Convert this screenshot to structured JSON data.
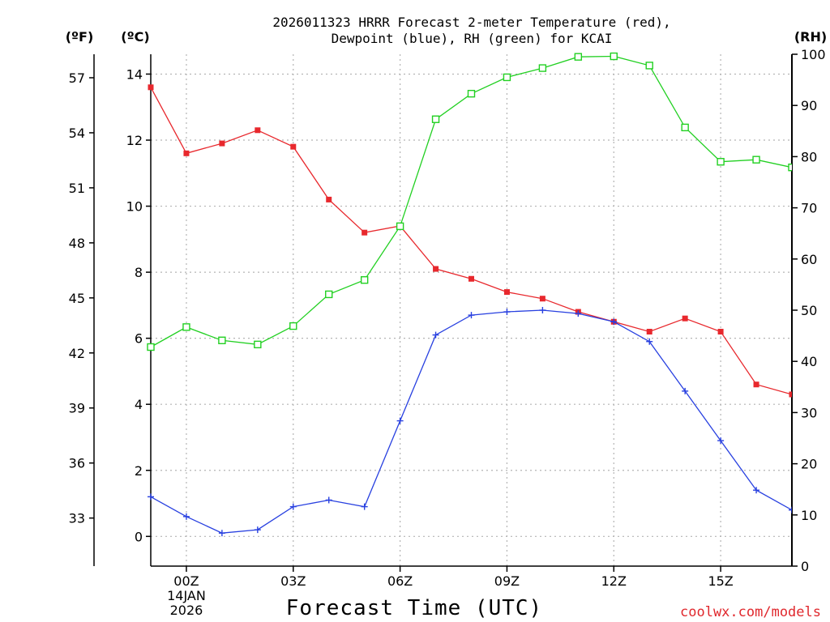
{
  "chart_data": {
    "type": "line",
    "title_line1": "2026011323 HRRR Forecast 2-meter Temperature (red),",
    "title_line2": "Dewpoint (blue), RH (green) for KCAI",
    "xlabel": "Forecast Time (UTC)",
    "credit": "coolwx.com/models",
    "left_unit_f": "(ºF)",
    "left_unit_c": "(ºC)",
    "right_unit": "(RH)",
    "x_hours": [
      -1,
      0,
      1,
      2,
      3,
      4,
      5,
      6,
      7,
      8,
      9,
      10,
      11,
      12,
      13,
      14,
      15,
      16,
      17
    ],
    "x_range": [
      -1,
      17
    ],
    "x_ticks": [
      {
        "hour": 0,
        "label": "00Z"
      },
      {
        "hour": 3,
        "label": "03Z"
      },
      {
        "hour": 6,
        "label": "06Z"
      },
      {
        "hour": 9,
        "label": "09Z"
      },
      {
        "hour": 12,
        "label": "12Z"
      },
      {
        "hour": 15,
        "label": "15Z"
      }
    ],
    "date_label_line1": "14JAN",
    "date_label_line2": "2026",
    "ylim_c": [
      -0.9,
      14.6
    ],
    "yticks_c": [
      0,
      2,
      4,
      6,
      8,
      10,
      12,
      14
    ],
    "ylim_f": [
      30.4,
      58.3
    ],
    "yticks_f": [
      33,
      36,
      39,
      42,
      45,
      48,
      51,
      54,
      57
    ],
    "ylim_rh": [
      0,
      100
    ],
    "yticks_rh": [
      0,
      10,
      20,
      30,
      40,
      50,
      60,
      70,
      80,
      90,
      100
    ],
    "series": [
      {
        "name": "Temperature",
        "unit": "C",
        "axis": "left",
        "color": "#e8282d",
        "marker": "filled-square",
        "values": [
          13.6,
          11.6,
          11.9,
          12.3,
          11.8,
          10.2,
          9.2,
          9.4,
          8.1,
          7.8,
          7.4,
          7.2,
          6.8,
          6.5,
          6.2,
          6.6,
          6.2,
          4.6,
          4.3
        ]
      },
      {
        "name": "Dewpoint",
        "unit": "C",
        "axis": "left",
        "color": "#2840e0",
        "marker": "plus",
        "values": [
          1.2,
          0.6,
          0.1,
          0.2,
          0.9,
          1.1,
          0.9,
          3.5,
          6.1,
          6.7,
          6.8,
          6.85,
          6.75,
          6.5,
          5.9,
          4.4,
          2.9,
          1.4,
          0.8
        ]
      },
      {
        "name": "RH",
        "unit": "%",
        "axis": "right",
        "color": "#22d022",
        "marker": "open-square",
        "values": [
          42.8,
          46.7,
          44.1,
          43.3,
          46.9,
          53.1,
          55.9,
          66.4,
          87.3,
          92.3,
          95.5,
          97.3,
          99.5,
          99.6,
          97.8,
          85.7,
          79.0,
          79.4,
          77.9
        ]
      }
    ]
  }
}
